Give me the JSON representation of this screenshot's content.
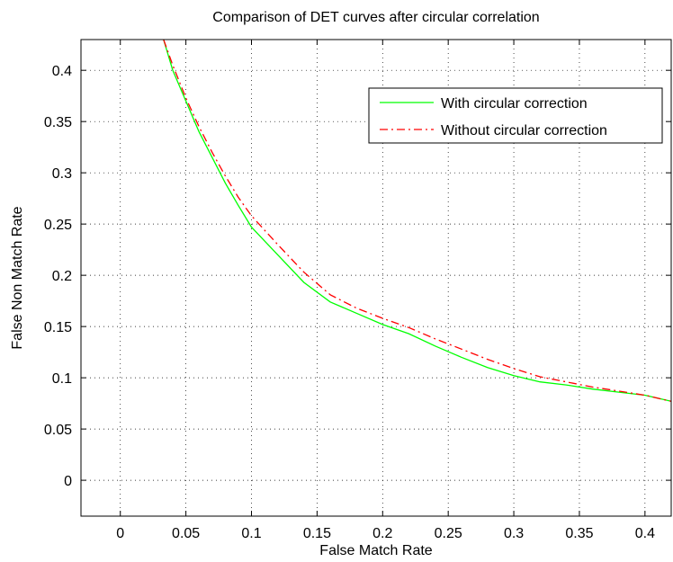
{
  "chart_data": {
    "type": "line",
    "title": "Comparison of DET curves after circular correlation",
    "xlabel": "False Match Rate",
    "ylabel": "False Non Match Rate",
    "xlim": [
      -0.03,
      0.42
    ],
    "ylim": [
      -0.035,
      0.43
    ],
    "xticks": [
      0,
      0.05,
      0.1,
      0.15,
      0.2,
      0.25,
      0.3,
      0.35,
      0.4
    ],
    "xtick_labels": [
      "0",
      "0.05",
      "0.1",
      "0.15",
      "0.2",
      "0.25",
      "0.3",
      "0.35",
      "0.4"
    ],
    "yticks": [
      0,
      0.05,
      0.1,
      0.15,
      0.2,
      0.25,
      0.3,
      0.35,
      0.4
    ],
    "ytick_labels": [
      "0",
      "0.05",
      "0.1",
      "0.15",
      "0.2",
      "0.25",
      "0.3",
      "0.35",
      "0.4"
    ],
    "grid": true,
    "legend_position": "top-right",
    "series": [
      {
        "name": "With circular correction",
        "color": "#00ff00",
        "style": "solid",
        "x": [
          0.033,
          0.04,
          0.05,
          0.06,
          0.07,
          0.08,
          0.09,
          0.1,
          0.12,
          0.14,
          0.16,
          0.18,
          0.2,
          0.22,
          0.24,
          0.26,
          0.28,
          0.3,
          0.32,
          0.34,
          0.36,
          0.38,
          0.4,
          0.42
        ],
        "y": [
          0.43,
          0.4,
          0.37,
          0.34,
          0.315,
          0.29,
          0.268,
          0.247,
          0.22,
          0.193,
          0.174,
          0.163,
          0.152,
          0.143,
          0.131,
          0.12,
          0.11,
          0.102,
          0.096,
          0.093,
          0.089,
          0.086,
          0.083,
          0.077
        ]
      },
      {
        "name": "Without circular correction",
        "color": "#ff0000",
        "style": "dashdot",
        "x": [
          0.033,
          0.04,
          0.05,
          0.06,
          0.07,
          0.08,
          0.09,
          0.1,
          0.12,
          0.14,
          0.16,
          0.18,
          0.2,
          0.22,
          0.24,
          0.26,
          0.28,
          0.3,
          0.32,
          0.34,
          0.36,
          0.38,
          0.4,
          0.42
        ],
        "y": [
          0.43,
          0.405,
          0.373,
          0.345,
          0.32,
          0.297,
          0.276,
          0.258,
          0.23,
          0.203,
          0.181,
          0.168,
          0.158,
          0.149,
          0.138,
          0.128,
          0.118,
          0.109,
          0.101,
          0.096,
          0.091,
          0.087,
          0.083,
          0.077
        ]
      }
    ]
  }
}
